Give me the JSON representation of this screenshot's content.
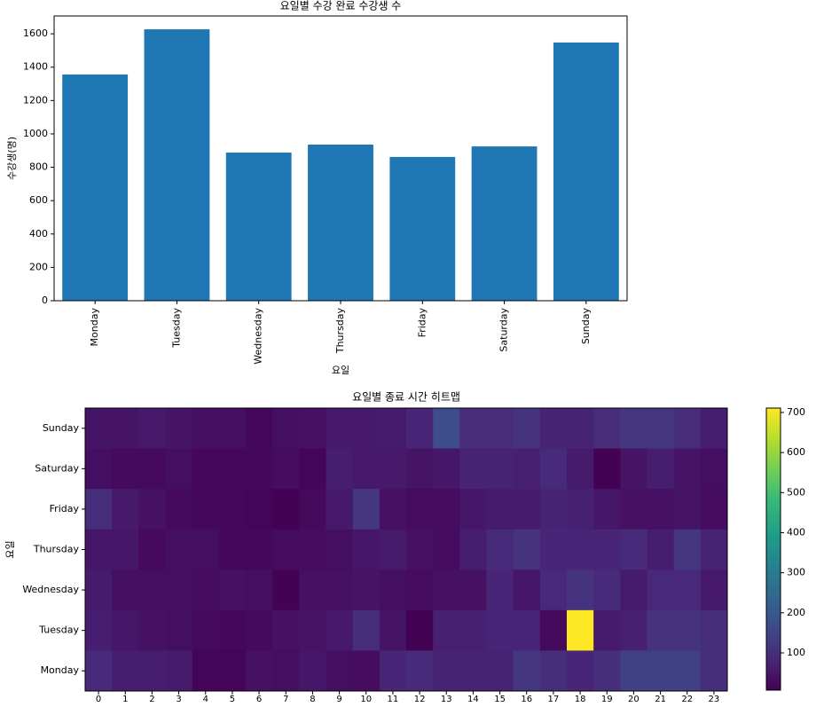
{
  "chart_data": [
    {
      "type": "bar",
      "title": "요일별 수강 완료 수강생 수",
      "xlabel": "요일",
      "ylabel": "수강생(명)",
      "categories": [
        "Monday",
        "Tuesday",
        "Wednesday",
        "Thursday",
        "Friday",
        "Saturday",
        "Sunday"
      ],
      "values": [
        1356,
        1627,
        888,
        936,
        862,
        925,
        1548
      ],
      "color": "#1f77b4",
      "ylim": [
        0,
        1707
      ],
      "yticks": [
        0,
        200,
        400,
        600,
        800,
        1000,
        1200,
        1400,
        1600
      ]
    },
    {
      "type": "heatmap",
      "title": "요일별 종료 시간 히트맵",
      "ylabel": "요일",
      "colormap": "viridis",
      "x_categories": [
        0,
        1,
        2,
        3,
        4,
        5,
        6,
        7,
        8,
        9,
        10,
        11,
        12,
        13,
        14,
        15,
        16,
        17,
        18,
        19,
        20,
        21,
        22,
        23
      ],
      "y_categories": [
        "Sunday",
        "Saturday",
        "Friday",
        "Thursday",
        "Wednesday",
        "Tuesday",
        "Monday"
      ],
      "values": [
        [
          45,
          45,
          55,
          45,
          35,
          35,
          20,
          35,
          40,
          55,
          55,
          60,
          80,
          170,
          95,
          95,
          110,
          75,
          75,
          95,
          120,
          120,
          95,
          65
        ],
        [
          35,
          25,
          25,
          35,
          20,
          20,
          20,
          30,
          15,
          65,
          55,
          55,
          45,
          50,
          75,
          75,
          70,
          90,
          60,
          10,
          45,
          65,
          45,
          35
        ],
        [
          100,
          55,
          40,
          25,
          20,
          20,
          15,
          10,
          25,
          55,
          120,
          40,
          30,
          30,
          50,
          60,
          60,
          75,
          70,
          50,
          40,
          40,
          45,
          30
        ],
        [
          50,
          50,
          25,
          35,
          35,
          20,
          20,
          30,
          30,
          35,
          50,
          60,
          40,
          30,
          65,
          90,
          110,
          80,
          80,
          80,
          90,
          65,
          120,
          75
        ],
        [
          60,
          35,
          35,
          35,
          30,
          40,
          35,
          10,
          40,
          40,
          45,
          35,
          30,
          40,
          40,
          80,
          50,
          85,
          110,
          90,
          60,
          85,
          85,
          55
        ],
        [
          65,
          50,
          40,
          35,
          25,
          20,
          25,
          40,
          45,
          55,
          100,
          45,
          10,
          70,
          70,
          80,
          80,
          25,
          711,
          60,
          70,
          110,
          110,
          100
        ],
        [
          90,
          65,
          65,
          60,
          15,
          15,
          40,
          35,
          50,
          35,
          30,
          80,
          90,
          75,
          75,
          75,
          120,
          100,
          80,
          100,
          140,
          140,
          140,
          100
        ]
      ],
      "clim": [
        7,
        711
      ],
      "cticks": [
        100,
        200,
        300,
        400,
        500,
        600,
        700
      ]
    }
  ]
}
